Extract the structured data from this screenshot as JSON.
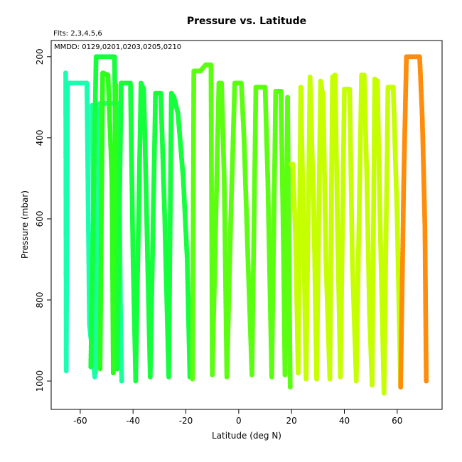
{
  "chart_data": {
    "type": "scatter",
    "title": "Pressure vs. Latitude",
    "subtitle": "Flts: 2,3,4,5,6",
    "annotation": "MMDD: 0129,0201,0203,0205,0210",
    "xlabel": "Latitude (deg N)",
    "ylabel": "Pressure (mbar)",
    "xlim": [
      -71,
      77
    ],
    "ylim": [
      1070,
      160
    ],
    "y_inverted": true,
    "xticks": [
      -60,
      -40,
      -20,
      0,
      20,
      40,
      60
    ],
    "yticks": [
      200,
      400,
      600,
      800,
      1000
    ],
    "grid": false,
    "legend": "none",
    "point_shape": "filled circle",
    "series": [
      {
        "color": "#19FFB0",
        "points": [
          [
            -65.5,
            240
          ],
          [
            -65.3,
            975
          ],
          [
            -64.8,
            265
          ],
          [
            -57.5,
            265
          ],
          [
            -56.5,
            860
          ],
          [
            -54.5,
            990
          ]
        ]
      },
      {
        "color": "#1AFF9A",
        "points": [
          [
            -55.5,
            320
          ],
          [
            -54.8,
            700
          ],
          [
            -54.3,
            980
          ],
          [
            -52.5,
            315
          ],
          [
            -45.5,
            315
          ],
          [
            -44.8,
            800
          ],
          [
            -44.3,
            1000
          ]
        ]
      },
      {
        "color": "#14FF3C",
        "points": [
          [
            -56.0,
            965
          ],
          [
            -54.0,
            200
          ],
          [
            -53.5,
            200
          ],
          [
            -47.0,
            200
          ],
          [
            -46.0,
            970
          ],
          [
            -44.5,
            265
          ],
          [
            -41.0,
            265
          ],
          [
            -40.0,
            700
          ],
          [
            -39.0,
            1000
          ],
          [
            -37.0,
            265
          ],
          [
            -36.0,
            280
          ],
          [
            -35.5,
            400
          ],
          [
            -34.5,
            700
          ],
          [
            -33.5,
            990
          ],
          [
            -31.5,
            290
          ],
          [
            -29.5,
            290
          ],
          [
            -28.0,
            600
          ],
          [
            -26.5,
            990
          ],
          [
            -25.5,
            290
          ],
          [
            -24.5,
            300
          ],
          [
            -23.0,
            340
          ],
          [
            -21.0,
            500
          ],
          [
            -19.5,
            700
          ],
          [
            -18.5,
            990
          ]
        ]
      },
      {
        "color": "#2BFF1A",
        "points": [
          [
            -52.5,
            970
          ],
          [
            -51.5,
            240
          ],
          [
            -49.5,
            245
          ],
          [
            -48.0,
            500
          ],
          [
            -47.5,
            980
          ],
          [
            -46.5,
            270
          ]
        ]
      },
      {
        "color": "#5BFF10",
        "points": [
          [
            -17.5,
            995
          ],
          [
            -17.0,
            235
          ],
          [
            -14.5,
            235
          ],
          [
            -12.5,
            220
          ],
          [
            -10.5,
            220
          ],
          [
            -10.0,
            985
          ],
          [
            -9.0,
            700
          ],
          [
            -7.5,
            265
          ],
          [
            -6.5,
            265
          ],
          [
            -5.5,
            500
          ],
          [
            -4.5,
            990
          ],
          [
            -3.0,
            600
          ],
          [
            -1.5,
            265
          ],
          [
            1.0,
            265
          ],
          [
            2.0,
            400
          ],
          [
            3.5,
            700
          ],
          [
            5.0,
            985
          ],
          [
            6.5,
            275
          ],
          [
            10.0,
            275
          ],
          [
            11.0,
            500
          ],
          [
            12.5,
            990
          ],
          [
            14.0,
            285
          ],
          [
            16.0,
            285
          ],
          [
            17.0,
            700
          ],
          [
            17.5,
            985
          ],
          [
            18.5,
            300
          ],
          [
            19.5,
            1015
          ]
        ]
      },
      {
        "color": "#C5FF00",
        "points": [
          [
            19.8,
            465
          ],
          [
            20.5,
            465
          ],
          [
            21.5,
            640
          ],
          [
            22.5,
            980
          ],
          [
            23.5,
            275
          ],
          [
            24.5,
            600
          ],
          [
            25.5,
            995
          ],
          [
            27.0,
            250
          ],
          [
            28.5,
            600
          ],
          [
            29.5,
            995
          ],
          [
            31.0,
            260
          ],
          [
            32.0,
            300
          ],
          [
            33.0,
            700
          ],
          [
            34.5,
            995
          ],
          [
            35.5,
            250
          ],
          [
            36.5,
            245
          ],
          [
            37.5,
            650
          ],
          [
            38.5,
            990
          ],
          [
            40.0,
            280
          ],
          [
            42.0,
            280
          ],
          [
            43.0,
            700
          ],
          [
            44.5,
            1000
          ],
          [
            46.5,
            245
          ],
          [
            47.5,
            245
          ],
          [
            48.5,
            500
          ],
          [
            49.5,
            830
          ],
          [
            50.5,
            1010
          ],
          [
            51.5,
            255
          ],
          [
            52.5,
            260
          ],
          [
            53.5,
            600
          ],
          [
            55.0,
            1030
          ],
          [
            56.5,
            275
          ],
          [
            58.5,
            275
          ],
          [
            60.0,
            600
          ],
          [
            61.3,
            1015
          ]
        ]
      },
      {
        "color": "#FF8C0A",
        "points": [
          [
            61.3,
            1015
          ],
          [
            62.5,
            500
          ],
          [
            63.5,
            200
          ],
          [
            68.5,
            200
          ],
          [
            69.5,
            350
          ],
          [
            70.5,
            620
          ],
          [
            71.0,
            1000
          ]
        ]
      }
    ]
  }
}
